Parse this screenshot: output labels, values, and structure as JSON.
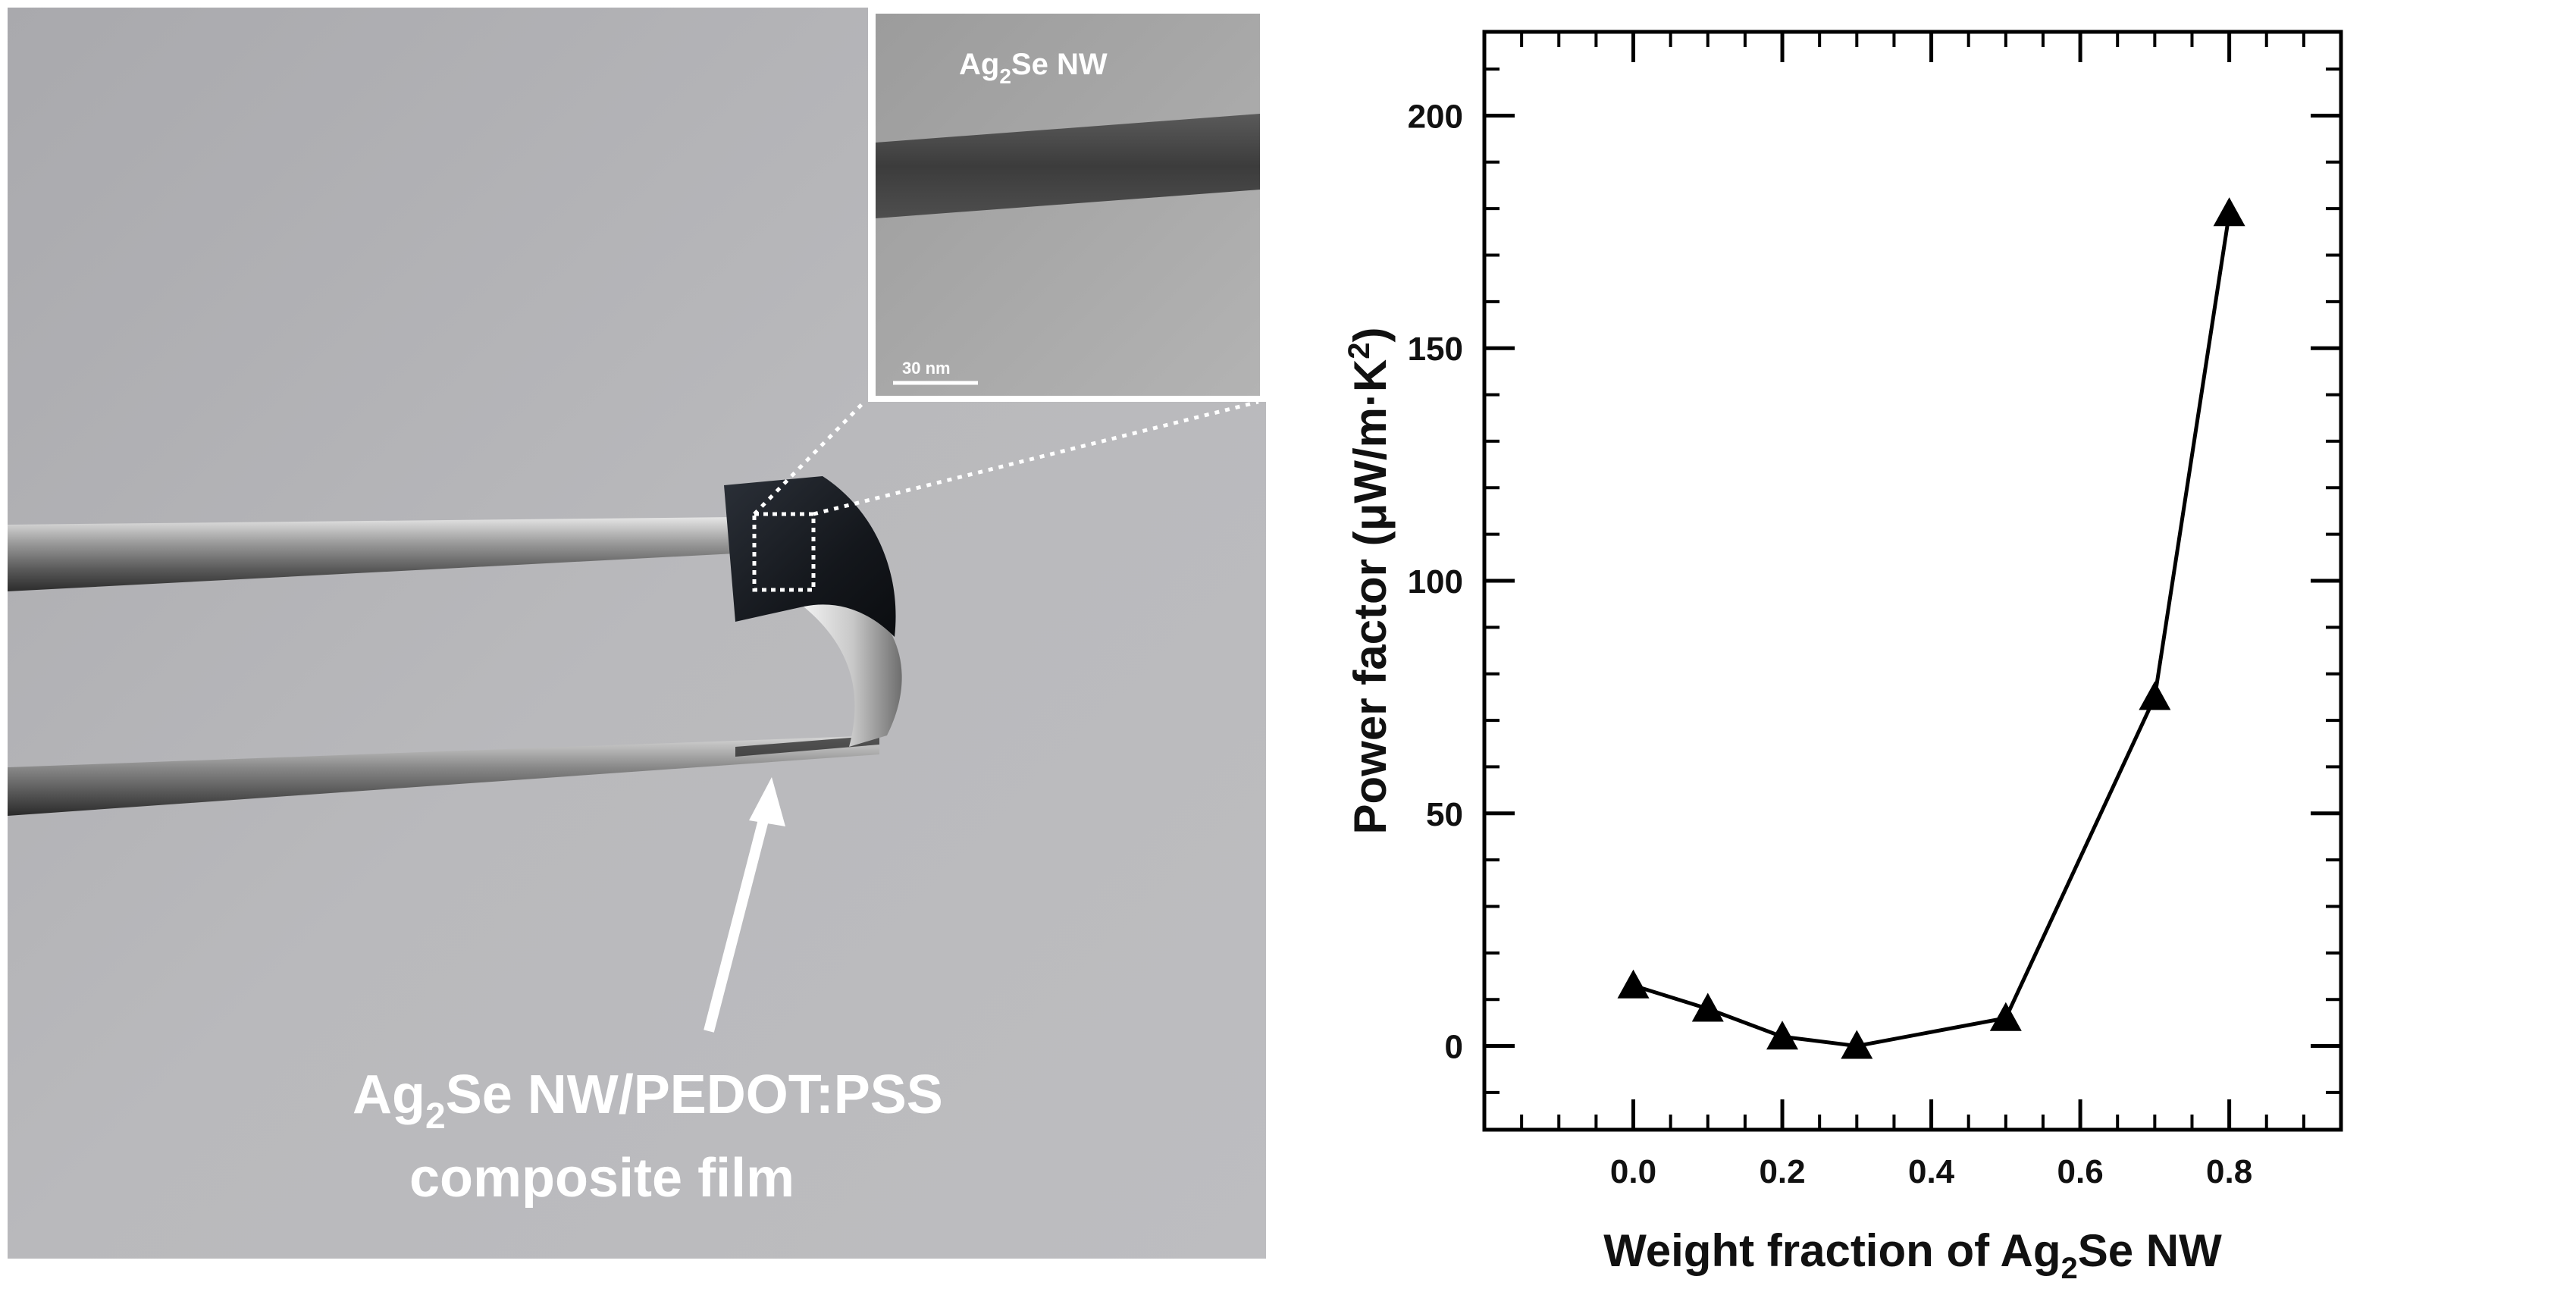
{
  "photo": {
    "inset_label": {
      "main": "Ag",
      "sub": "2",
      "rest": "Se NW"
    },
    "scale_bar_label": "30 nm",
    "caption_line1": {
      "main": "Ag",
      "sub": "2",
      "rest": "Se NW/PEDOT:PSS"
    },
    "caption_line2": "composite film"
  },
  "chart_data": {
    "type": "line",
    "marker": "triangle",
    "xlabel": {
      "main": "Weight fraction of Ag",
      "sub": "2",
      "rest": "Se NW"
    },
    "ylabel": {
      "main": "Power factor (μW/m·K",
      "sup": "2",
      "rest": ")"
    },
    "xlim": [
      -0.2,
      0.95
    ],
    "ylim": [
      -18,
      218
    ],
    "xticks": [
      0.0,
      0.2,
      0.4,
      0.6,
      0.8
    ],
    "xtick_labels": [
      "0.0",
      "0.2",
      "0.4",
      "0.6",
      "0.8"
    ],
    "yticks": [
      0,
      50,
      100,
      150,
      200
    ],
    "ytick_labels": [
      "0",
      "50",
      "100",
      "150",
      "200"
    ],
    "x_minor_step": 0.05,
    "y_minor_step": 10,
    "grid": false,
    "series": [
      {
        "x": [
          0.0,
          0.1,
          0.2,
          0.3,
          0.5,
          0.7,
          0.8
        ],
        "y": [
          13,
          8,
          2,
          0,
          6,
          75,
          179
        ]
      }
    ],
    "color": "#000000"
  }
}
